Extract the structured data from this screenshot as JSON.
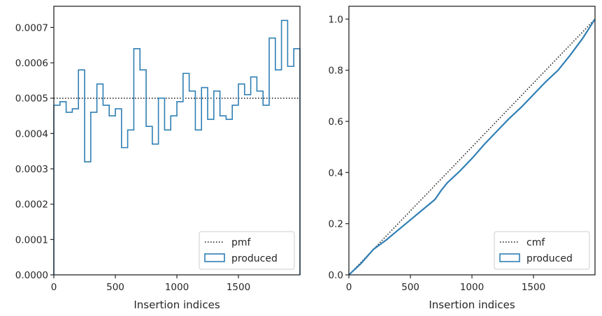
{
  "colors": {
    "produced": "#2f7fb4",
    "reference_line": "#111111",
    "axes": "#262626",
    "background": "#ffffff"
  },
  "chart_data": [
    {
      "type": "histogram",
      "xlabel": "Insertion indices",
      "ylabel": "",
      "xlim": [
        0,
        2000
      ],
      "ylim": [
        0,
        0.00076
      ],
      "xticks": [
        0,
        500,
        1000,
        1500
      ],
      "xtick_labels": [
        "0",
        "500",
        "1000",
        "1500"
      ],
      "yticks": [
        0,
        0.0001,
        0.0002,
        0.0003,
        0.0004,
        0.0005,
        0.0006,
        0.0007
      ],
      "ytick_labels": [
        "0.0000",
        "0.0001",
        "0.0002",
        "0.0003",
        "0.0004",
        "0.0005",
        "0.0006",
        "0.0007"
      ],
      "bin_width": 50,
      "reference_line": {
        "label": "pmf",
        "value": 0.0005,
        "style": "dotted"
      },
      "series": [
        {
          "name": "produced",
          "style": "step",
          "values": [
            0.00048,
            0.00049,
            0.00046,
            0.00047,
            0.00058,
            0.00032,
            0.00046,
            0.00054,
            0.00048,
            0.00045,
            0.00047,
            0.00036,
            0.00041,
            0.00064,
            0.00058,
            0.00042,
            0.00037,
            0.0005,
            0.00041,
            0.00045,
            0.00049,
            0.00057,
            0.00052,
            0.00041,
            0.00053,
            0.00044,
            0.00052,
            0.00045,
            0.00044,
            0.00048,
            0.00054,
            0.00051,
            0.00056,
            0.00052,
            0.00048,
            0.00067,
            0.00058,
            0.00072,
            0.00059,
            0.00064
          ]
        }
      ],
      "legend": {
        "position": "lower-right",
        "entries": [
          "pmf",
          "produced"
        ]
      },
      "grid": false
    },
    {
      "type": "line",
      "xlabel": "Insertion indices",
      "ylabel": "",
      "xlim": [
        0,
        2000
      ],
      "ylim": [
        0,
        1.05
      ],
      "xticks": [
        0,
        500,
        1000,
        1500
      ],
      "xtick_labels": [
        "0",
        "500",
        "1000",
        "1500"
      ],
      "yticks": [
        0,
        0.2,
        0.4,
        0.6,
        0.8,
        1.0
      ],
      "ytick_labels": [
        "0.0",
        "0.2",
        "0.4",
        "0.6",
        "0.8",
        "1.0"
      ],
      "reference_line": {
        "label": "cmf",
        "from": [
          0,
          0
        ],
        "to": [
          2000,
          1.0
        ],
        "style": "dotted"
      },
      "series": [
        {
          "name": "produced",
          "x": [
            0,
            100,
            200,
            300,
            400,
            500,
            600,
            700,
            750,
            800,
            900,
            1000,
            1100,
            1200,
            1300,
            1400,
            1500,
            1600,
            1700,
            1800,
            1900,
            2000
          ],
          "y": [
            0,
            0.045,
            0.1,
            0.135,
            0.175,
            0.215,
            0.255,
            0.295,
            0.33,
            0.36,
            0.405,
            0.455,
            0.51,
            0.56,
            0.61,
            0.655,
            0.705,
            0.755,
            0.8,
            0.86,
            0.925,
            1.0
          ]
        }
      ],
      "legend": {
        "position": "lower-right",
        "entries": [
          "cmf",
          "produced"
        ]
      },
      "grid": false
    }
  ]
}
